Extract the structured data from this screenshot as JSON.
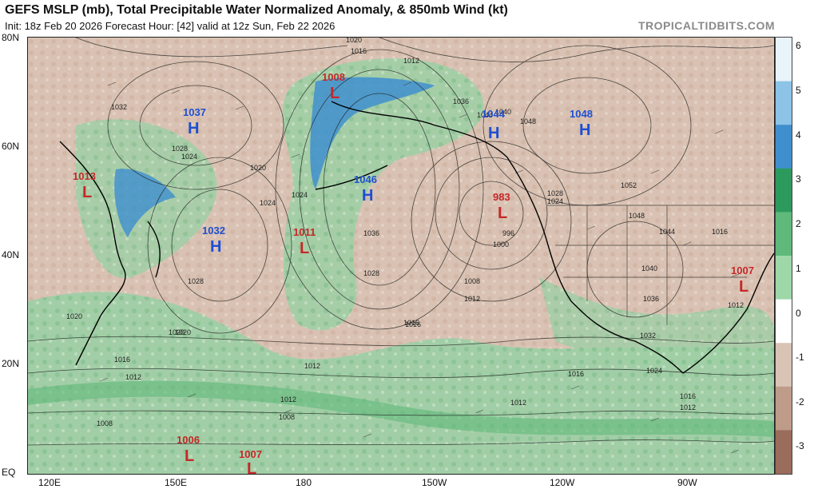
{
  "header": {
    "title": "GEFS MSLP (mb), Total Precipitable Water Normalized Anomaly, & 850mb Wind (kt)",
    "subtitle": "Init: 18z Feb 20 2026   Forecast Hour: [42]   valid at 12z Sun, Feb 22 2026",
    "credit": "TROPICALTIDBITS.COM"
  },
  "axes": {
    "lat_labels": [
      "80N",
      "60N",
      "40N",
      "20N",
      "EQ"
    ],
    "lon_labels": [
      "120E",
      "150E",
      "180",
      "150W",
      "120W",
      "90W"
    ]
  },
  "colorbar": {
    "labels": [
      "6",
      "5",
      "4",
      "3",
      "2",
      "1",
      "0",
      "-1",
      "-2",
      "-3"
    ],
    "colors": [
      "#e8f3fa",
      "#8cc3e6",
      "#3f8fcf",
      "#2c9a5c",
      "#5fb97a",
      "#9ed7a8",
      "#ffffff",
      "#d9c3b5",
      "#bf9b8a",
      "#9a6c5c"
    ]
  },
  "pressure_centers": [
    {
      "type": "H",
      "value": "1037"
    },
    {
      "type": "L",
      "value": "1008"
    },
    {
      "type": "H",
      "value": "1046"
    },
    {
      "type": "H",
      "value": "1032"
    },
    {
      "type": "L",
      "value": "1011"
    },
    {
      "type": "L",
      "value": "1013"
    },
    {
      "type": "L",
      "value": "983"
    },
    {
      "type": "H",
      "value": "1044"
    },
    {
      "type": "H",
      "value": "1048"
    },
    {
      "type": "L",
      "value": "1007"
    },
    {
      "type": "L",
      "value": "1006"
    },
    {
      "type": "L",
      "value": "1007"
    }
  ],
  "isobar_labels": [
    "1020",
    "1016",
    "1012",
    "1032",
    "1028",
    "1024",
    "1020",
    "1036",
    "1040",
    "1044",
    "1048",
    "1052",
    "1036",
    "1028",
    "1024",
    "1000",
    "996",
    "1008",
    "1012",
    "1016",
    "1028",
    "1024",
    "1020",
    "1016",
    "1012",
    "1008",
    "1012",
    "1016",
    "1012",
    "1020",
    "1024",
    "1028",
    "1040",
    "1036",
    "1032",
    "1044",
    "1048",
    "1016",
    "1012",
    "1012",
    "1008",
    "1024",
    "1016",
    "1012",
    "1016",
    "1020"
  ]
}
